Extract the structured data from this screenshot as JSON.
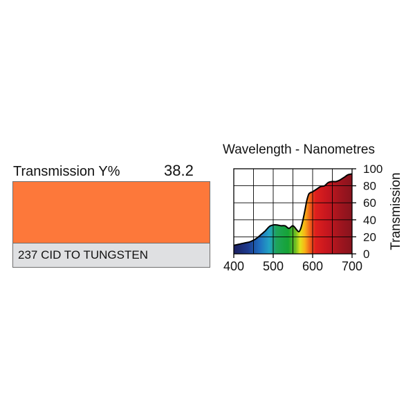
{
  "swatch": {
    "transmission_label": "Transmission Y%",
    "transmission_value": "38.2",
    "color": "#fd783a",
    "name": "237 CID TO TUNGSTEN"
  },
  "chart_data": {
    "type": "area",
    "title": "Wavelength - Nanometres",
    "xlabel": "",
    "ylabel": "Transmission",
    "xlim": [
      400,
      700
    ],
    "ylim": [
      0,
      100
    ],
    "xticks": [
      400,
      500,
      600,
      700
    ],
    "yticks": [
      0,
      20,
      40,
      60,
      80,
      100
    ],
    "x_gridlines": [
      400,
      450,
      500,
      550,
      600,
      650,
      700
    ],
    "y_gridlines": [
      0,
      20,
      40,
      60,
      80,
      100
    ],
    "grid": true,
    "fill": "visible-spectrum gradient",
    "series": [
      {
        "x": [
          400,
          410,
          420,
          430,
          440,
          450,
          460,
          470,
          480,
          490,
          500,
          510,
          520,
          530,
          540,
          550,
          560,
          565,
          570,
          575,
          580,
          585,
          590,
          595,
          600,
          610,
          620,
          630,
          640,
          650,
          660,
          670,
          680,
          690,
          700
        ],
        "values": [
          10,
          11,
          12,
          13,
          14,
          16,
          19,
          23,
          27,
          32,
          34,
          34,
          33,
          33,
          30,
          33,
          28,
          26,
          30,
          39,
          50,
          62,
          70,
          72,
          73,
          76,
          79,
          80,
          84,
          85,
          85,
          87,
          90,
          93,
          94
        ]
      }
    ]
  }
}
